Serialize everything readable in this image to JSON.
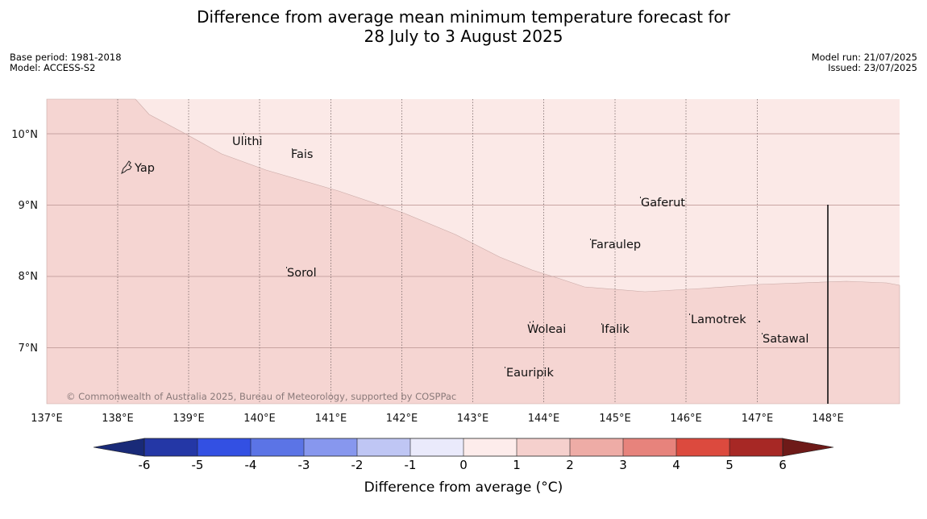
{
  "header": {
    "title_line1": "Difference from average mean minimum temperature forecast for",
    "title_line2": "28 July to 3 August 2025",
    "base_period": "Base period: 1981-2018",
    "model": "Model: ACCESS-S2",
    "model_run": "Model run: 21/07/2025",
    "issued": "Issued: 23/07/2025"
  },
  "map": {
    "lon_labels": [
      "137°E",
      "138°E",
      "139°E",
      "140°E",
      "141°E",
      "142°E",
      "143°E",
      "144°E",
      "145°E",
      "146°E",
      "147°E",
      "148°E"
    ],
    "lat_labels": [
      "10°N",
      "9°N",
      "8°N",
      "7°N"
    ],
    "places": [
      "Yap",
      "Ulithi",
      "Fais",
      "Gaferut",
      "Faraulep",
      "Sorol",
      "Woleai",
      "Ifalik",
      "Lamotrek",
      "Satawal",
      "Eauripik"
    ],
    "copyright": "© Commonwealth of Australia 2025, Bureau of Meteorology, supported by COSPPac",
    "fill_colors": {
      "zero_to_one": "#fbe9e7",
      "one_to_two": "#f5d5d2"
    }
  },
  "colorbar": {
    "labels": [
      "-6",
      "-5",
      "-4",
      "-3",
      "-2",
      "-1",
      "0",
      "1",
      "2",
      "3",
      "4",
      "5",
      "6"
    ],
    "colors": [
      "#2437a6",
      "#3350e3",
      "#5b74e6",
      "#8797ee",
      "#bfc6f4",
      "#eaeafb",
      "#fdeceb",
      "#f5d0cd",
      "#eeaca6",
      "#e7837c",
      "#dc4a3e",
      "#a72825"
    ],
    "extend_low": "#192a78",
    "extend_high": "#6e1a18",
    "title": "Difference from average (°C)"
  }
}
